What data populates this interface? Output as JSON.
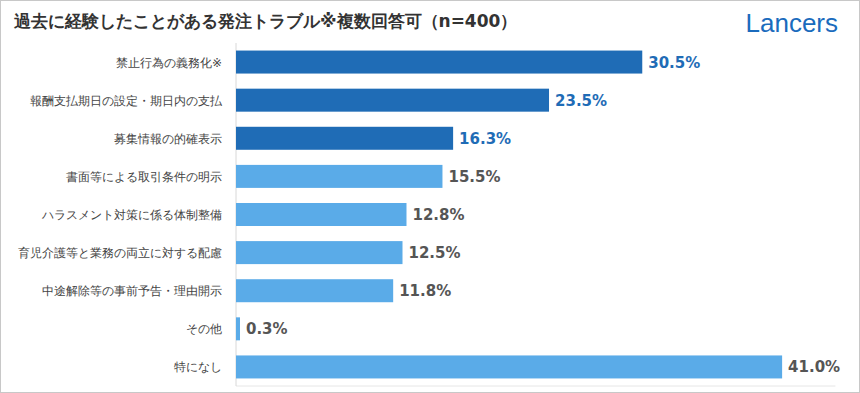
{
  "chart_data": {
    "type": "bar",
    "orientation": "horizontal",
    "title": "過去に経験したことがある発注トラブル※複数回答可（n=400）",
    "annotations": [
      "Lancers"
    ],
    "categories": [
      "禁止行為の義務化※",
      "報酬支払期日の設定・期日内の支払",
      "募集情報の的確表示",
      "書面等による取引条件の明示",
      "ハラスメント対策に係る体制整備",
      "育児介護等と業務の両立に対する配慮",
      "中途解除等の事前予告・理由開示",
      "その他",
      "特になし"
    ],
    "values": [
      30.5,
      23.5,
      16.3,
      15.5,
      12.8,
      12.5,
      11.8,
      0.3,
      41.0
    ],
    "value_labels": [
      "30.5%",
      "23.5%",
      "16.3%",
      "15.5%",
      "12.8%",
      "12.5%",
      "11.8%",
      "0.3%",
      "41.0%"
    ],
    "colors": [
      "#1f6cb6",
      "#1f6cb6",
      "#1f6cb6",
      "#5aabe8",
      "#5aabe8",
      "#5aabe8",
      "#5aabe8",
      "#5aabe8",
      "#5aabe8"
    ],
    "xlim": [
      0,
      45
    ],
    "data_labels": true,
    "tick_labels": "y",
    "grid": false
  }
}
